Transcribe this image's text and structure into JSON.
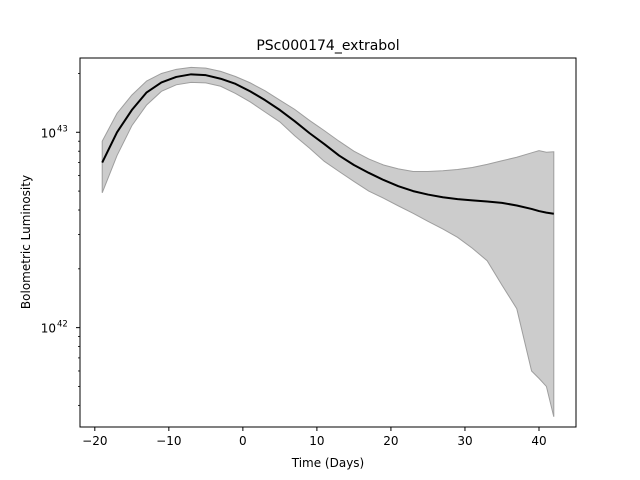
{
  "chart_data": {
    "type": "line",
    "title": "PSc000174_extrabol",
    "xlabel": "Time (Days)",
    "ylabel": "Bolometric Luminosity",
    "y_scale": "log",
    "xlim": [
      -22,
      45
    ],
    "ylim": [
      3.1e+41,
      2.4e+43
    ],
    "grid": false,
    "x_ticks": [
      -20,
      -10,
      0,
      10,
      20,
      30,
      40
    ],
    "x_tick_labels": [
      "−20",
      "−10",
      "0",
      "10",
      "20",
      "30",
      "40"
    ],
    "y_ticks": [
      {
        "value": 1e+42,
        "base": "10",
        "exp": "42"
      },
      {
        "value": 1e+43,
        "base": "10",
        "exp": "43"
      }
    ],
    "colors": {
      "line": "#000000",
      "band": "#cccccc",
      "band_edge": "#9e9e9e"
    },
    "series": [
      {
        "x": [
          -19,
          -17,
          -15,
          -13,
          -11,
          -9,
          -7,
          -5,
          -3,
          -1,
          1,
          3,
          5,
          7,
          9,
          11,
          13,
          15,
          17,
          19,
          21,
          23,
          25,
          27,
          29,
          31,
          33,
          35,
          37,
          39,
          40,
          41,
          42
        ],
        "y": [
          7e+42,
          1e+43,
          1.3e+43,
          1.6e+43,
          1.8e+43,
          1.92e+43,
          1.98e+43,
          1.96e+43,
          1.88e+43,
          1.77e+43,
          1.62e+43,
          1.46e+43,
          1.3e+43,
          1.14e+43,
          9.9e+42,
          8.7e+42,
          7.6e+42,
          6.8e+42,
          6.2e+42,
          5.7e+42,
          5.3e+42,
          5e+42,
          4.8e+42,
          4.65e+42,
          4.55e+42,
          4.48e+42,
          4.42e+42,
          4.35e+42,
          4.22e+42,
          4.05e+42,
          3.95e+42,
          3.88e+42,
          3.83e+42
        ],
        "lower": [
          4.9e+42,
          7.6e+42,
          1.08e+43,
          1.38e+43,
          1.62e+43,
          1.75e+43,
          1.8e+43,
          1.79e+43,
          1.72e+43,
          1.58e+43,
          1.43e+43,
          1.27e+43,
          1.13e+43,
          9.6e+42,
          8.3e+42,
          7.1e+42,
          6.3e+42,
          5.6e+42,
          5e+42,
          4.6e+42,
          4.2e+42,
          3.85e+42,
          3.5e+42,
          3.2e+42,
          2.9e+42,
          2.55e+42,
          2.2e+42,
          1.65e+42,
          1.25e+42,
          6e+41,
          5.5e+41,
          5e+41,
          3.5e+41
        ],
        "upper": [
          9e+42,
          1.25e+43,
          1.55e+43,
          1.83e+43,
          2e+43,
          2.1e+43,
          2.15e+43,
          2.13e+43,
          2.05e+43,
          1.93e+43,
          1.79e+43,
          1.63e+43,
          1.46e+43,
          1.31e+43,
          1.15e+43,
          1.02e+43,
          9e+42,
          8e+42,
          7.3e+42,
          6.8e+42,
          6.5e+42,
          6.3e+42,
          6.3e+42,
          6.35e+42,
          6.45e+42,
          6.6e+42,
          6.85e+42,
          7.15e+42,
          7.45e+42,
          7.85e+42,
          8.05e+42,
          7.9e+42,
          7.95e+42
        ]
      }
    ]
  }
}
